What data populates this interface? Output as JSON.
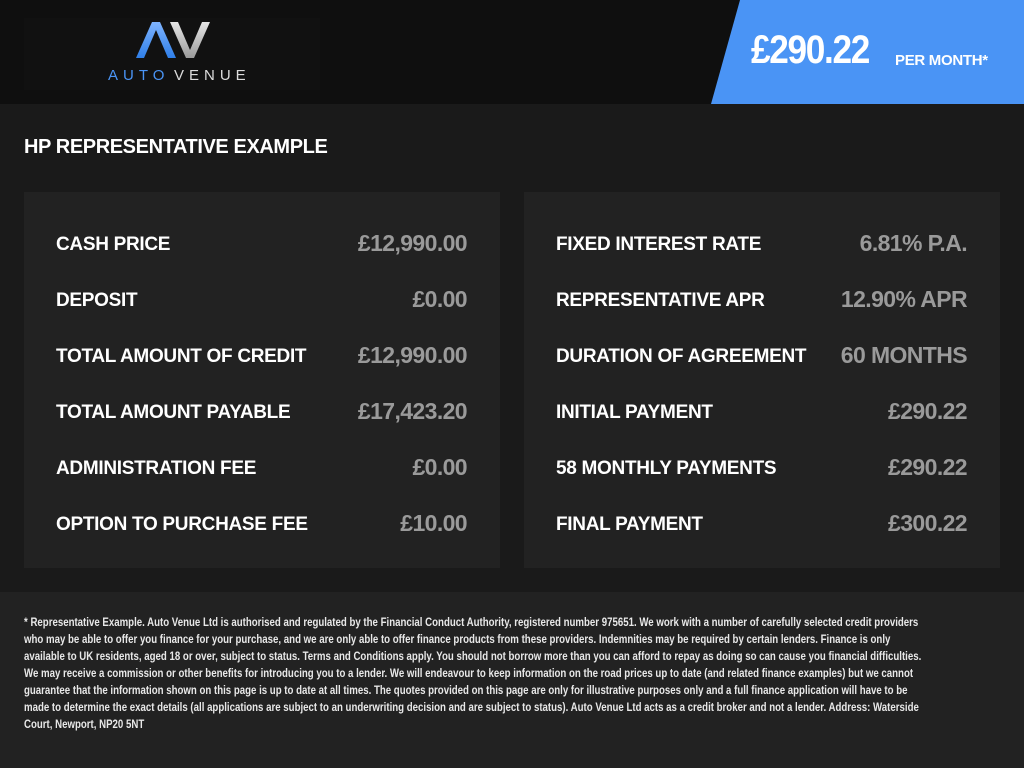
{
  "brand": {
    "logo_text": "AUTOVENUE",
    "logo_mark": "AV",
    "accent": "#4a94f5"
  },
  "header": {
    "monthly_price": "£290.22",
    "per_month_label": "PER MONTH*"
  },
  "title": "HP REPRESENTATIVE EXAMPLE",
  "left_panel": [
    {
      "label": "CASH PRICE",
      "value": "£12,990.00"
    },
    {
      "label": "DEPOSIT",
      "value": "£0.00"
    },
    {
      "label": "TOTAL AMOUNT OF CREDIT",
      "value": "£12,990.00"
    },
    {
      "label": "TOTAL AMOUNT PAYABLE",
      "value": "£17,423.20"
    },
    {
      "label": "ADMINISTRATION FEE",
      "value": "£0.00"
    },
    {
      "label": "OPTION TO PURCHASE FEE",
      "value": "£10.00"
    }
  ],
  "right_panel": [
    {
      "label": "FIXED INTEREST RATE",
      "value": "6.81% P.A."
    },
    {
      "label": "REPRESENTATIVE APR",
      "value": "12.90% APR"
    },
    {
      "label": "DURATION OF AGREEMENT",
      "value": "60 MONTHS"
    },
    {
      "label": "INITIAL PAYMENT",
      "value": "£290.22"
    },
    {
      "label": "58 MONTHLY PAYMENTS",
      "value": "£290.22"
    },
    {
      "label": "FINAL PAYMENT",
      "value": "£300.22"
    }
  ],
  "disclaimer": "* Representative Example. Auto Venue Ltd is authorised and regulated by the Financial Conduct Authority, registered number 975651. We work with a number of carefully selected credit providers who may be able to offer you finance for your purchase, and we are only able to offer finance products from these providers. Indemnities may be required by certain lenders. Finance is only available to UK residents, aged 18 or over, subject to status. Terms and Conditions apply. You should not borrow more than you can afford to repay as doing so can cause you financial difficulties. We may receive a commission or other benefits for introducing you to a lender. We will endeavour to keep information on the road prices up to date (and related finance examples) but we cannot guarantee that the information shown on this page is up to date at all times. The quotes provided on this page are only for illustrative purposes only and a full finance application will have to be made to determine the exact details (all applications are subject to an underwriting decision and are subject to status). Auto Venue Ltd acts as a credit broker and not a lender. Address: Waterside Court, Newport, NP20 5NT"
}
